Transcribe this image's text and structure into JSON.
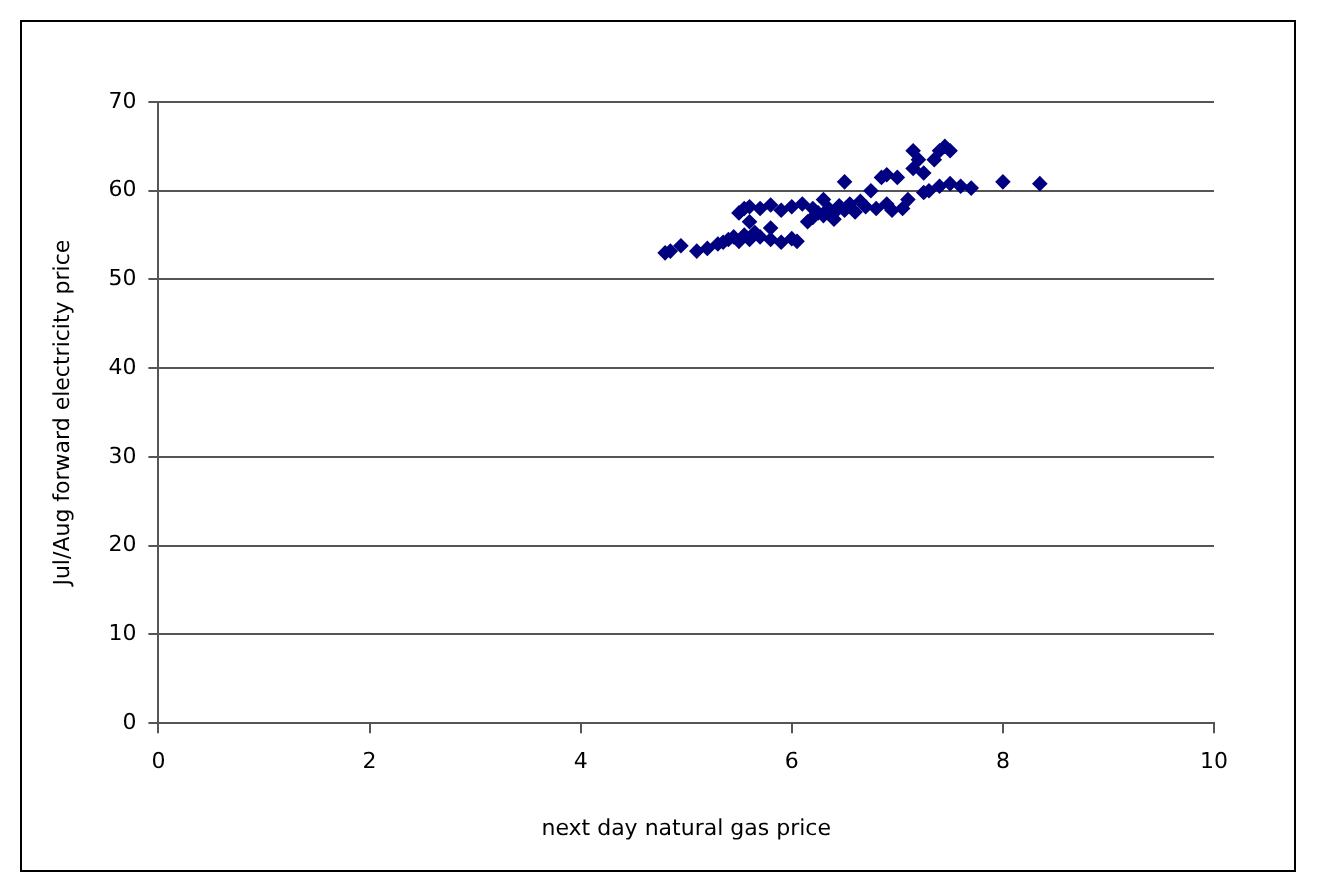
{
  "chart_data": {
    "type": "scatter",
    "xlabel": "next day natural gas price",
    "ylabel": "Jul/Aug forward electricity price",
    "xlim": [
      0,
      10
    ],
    "xticks": [
      0,
      2,
      4,
      6,
      8,
      10
    ],
    "ylim": [
      0,
      70
    ],
    "yticks": [
      0,
      10,
      20,
      30,
      40,
      50,
      60,
      70
    ],
    "grid": "y",
    "legend": false,
    "marker": "diamond",
    "series": [
      {
        "color": "#000080",
        "x": [
          4.8,
          4.85,
          4.95,
          5.1,
          5.2,
          5.3,
          5.35,
          5.4,
          5.45,
          5.5,
          5.55,
          5.6,
          5.65,
          5.7,
          5.8,
          5.9,
          6.0,
          6.05,
          5.5,
          5.55,
          5.6,
          5.7,
          5.8,
          5.9,
          6.0,
          6.1,
          6.2,
          5.6,
          5.8,
          6.15,
          6.2,
          6.25,
          6.3,
          6.35,
          6.4,
          6.45,
          6.5,
          6.55,
          6.6,
          6.65,
          6.3,
          6.4,
          6.5,
          6.7,
          6.8,
          6.75,
          6.85,
          6.9,
          7.0,
          7.05,
          7.1,
          7.15,
          7.2,
          7.15,
          7.25,
          7.3,
          7.35,
          7.4,
          7.45,
          7.5,
          7.4,
          7.5,
          7.6,
          7.7,
          8.0,
          8.35,
          7.25,
          6.9,
          6.95
        ],
        "values": [
          53,
          53.2,
          53.8,
          53.2,
          53.5,
          54,
          54.2,
          54.5,
          54.8,
          54.3,
          55,
          54.5,
          55.3,
          54.8,
          54.5,
          54.2,
          54.6,
          54.3,
          57.5,
          58,
          58.2,
          58,
          58.4,
          57.8,
          58.2,
          58.5,
          58,
          56.5,
          55.8,
          56.5,
          57,
          57.5,
          57.2,
          58,
          57.5,
          58.3,
          57.8,
          58.5,
          57.6,
          58.8,
          59,
          56.8,
          61,
          58.2,
          58,
          60,
          61.5,
          61.8,
          61.5,
          58,
          59,
          62.5,
          63.5,
          64.5,
          62,
          60,
          63.5,
          64.5,
          65,
          64.5,
          60.5,
          60.8,
          60.5,
          60.3,
          61,
          60.8,
          59.8,
          58.5,
          57.8
        ]
      }
    ]
  }
}
